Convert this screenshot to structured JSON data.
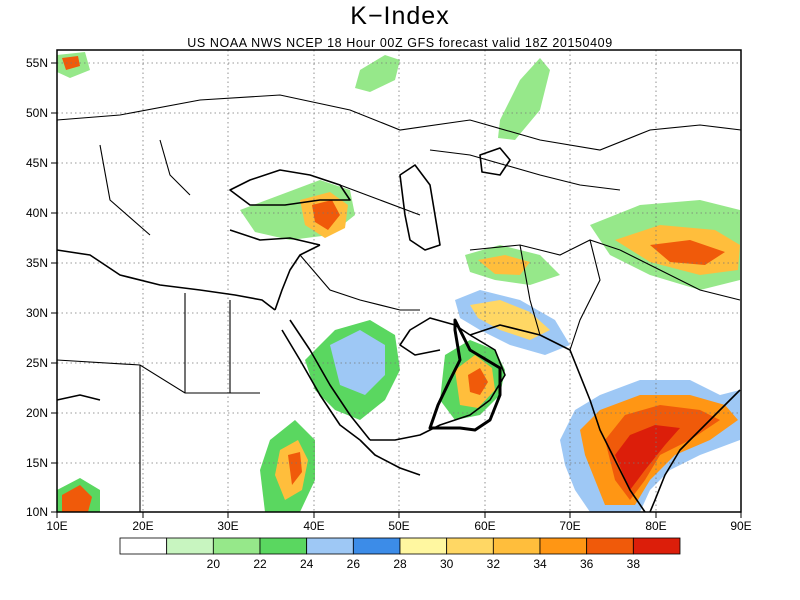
{
  "header": {
    "title": "K−Index",
    "subtitle": "US NOAA NWS NCEP 18 Hour 00Z GFS forecast valid 18Z 20150409"
  },
  "axes": {
    "lat_labels": [
      "55N",
      "50N",
      "45N",
      "40N",
      "35N",
      "30N",
      "25N",
      "20N",
      "15N",
      "10N"
    ],
    "lon_labels": [
      "10E",
      "20E",
      "30E",
      "40E",
      "50E",
      "60E",
      "70E",
      "80E",
      "90E"
    ]
  },
  "colorbar": {
    "colors": [
      "#ffffff",
      "#c8f5c0",
      "#96e88a",
      "#5ad760",
      "#9ec8f5",
      "#3c8ce8",
      "#fff7a0",
      "#ffd764",
      "#ffbe3c",
      "#ff9614",
      "#f05a0a",
      "#dc1e0a"
    ],
    "labels": [
      "20",
      "22",
      "24",
      "26",
      "28",
      "30",
      "32",
      "34",
      "36",
      "38"
    ]
  }
}
